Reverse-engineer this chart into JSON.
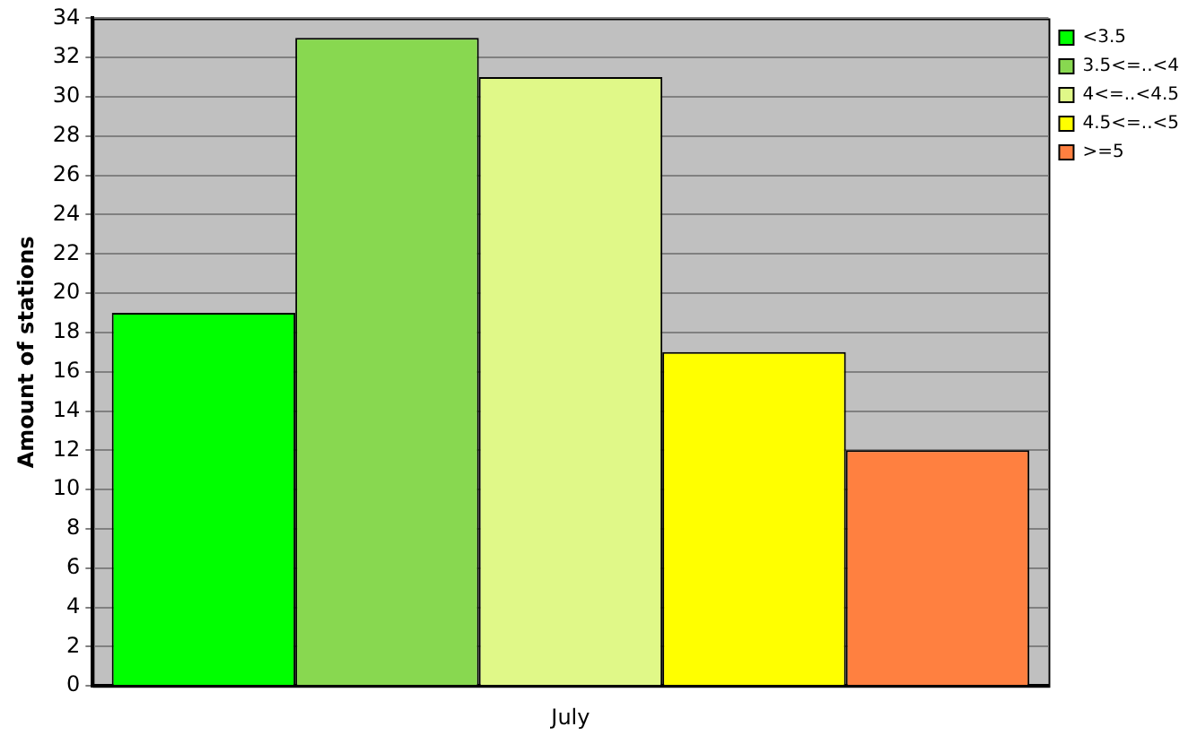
{
  "chart_data": {
    "type": "bar",
    "ylabel": "Amount of stations",
    "categories": [
      "July"
    ],
    "series": [
      {
        "name": "<3.5",
        "color": "#00ff00",
        "values": [
          19
        ]
      },
      {
        "name": "3.5<=..<4",
        "color": "#88d850",
        "values": [
          33
        ]
      },
      {
        "name": "4<=..<4.5",
        "color": "#e0f888",
        "values": [
          31
        ]
      },
      {
        "name": "4.5<=..<5",
        "color": "#ffff00",
        "values": [
          17
        ]
      },
      {
        "name": ">=5",
        "color": "#ff8040",
        "values": [
          12
        ]
      }
    ],
    "ylim": [
      0,
      34
    ],
    "yticks": [
      0,
      2,
      4,
      6,
      8,
      10,
      12,
      14,
      16,
      18,
      20,
      22,
      24,
      26,
      28,
      30,
      32,
      34
    ],
    "grid": "y",
    "legend": "top right"
  }
}
